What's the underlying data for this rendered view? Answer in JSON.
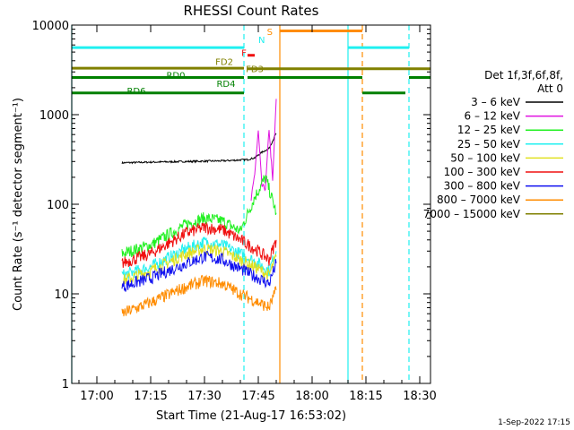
{
  "chart_data": {
    "type": "line",
    "title": "RHESSI Count Rates",
    "xlabel": "Start Time (21-Aug-17 16:53:02)",
    "ylabel": "Count Rate (s⁻¹ detector segment⁻¹)",
    "y_scale": "log",
    "xlim": [
      "16:53",
      "18:33"
    ],
    "ylim": [
      1,
      10000
    ],
    "x_ticks": [
      "17:00",
      "17:15",
      "17:30",
      "17:45",
      "18:00",
      "18:15",
      "18:30"
    ],
    "y_ticks": [
      "1",
      "10",
      "100",
      "1000",
      "10000"
    ],
    "grid": false,
    "legend": {
      "position": "right",
      "title": "Det 1f,3f,6f,8f,",
      "subtitle": "Att 0",
      "entries": [
        {
          "name": "3 – 6 keV",
          "color": "#000000"
        },
        {
          "name": "6 – 12 keV",
          "color": "#e010e0"
        },
        {
          "name": "12 – 25 keV",
          "color": "#20f020"
        },
        {
          "name": "25 – 50 keV",
          "color": "#20f0f0"
        },
        {
          "name": "50 – 100 keV",
          "color": "#e0e020"
        },
        {
          "name": "100 – 300 keV",
          "color": "#f01010"
        },
        {
          "name": "300 – 800 keV",
          "color": "#1010f0"
        },
        {
          "name": "800 – 7000 keV",
          "color": "#ff8c00"
        },
        {
          "name": "7000 – 15000 keV",
          "color": "#808000"
        }
      ]
    },
    "series": [
      {
        "name": "3 – 6 keV",
        "color": "#000000",
        "x": [
          "17:07",
          "17:15",
          "17:25",
          "17:35",
          "17:42",
          "17:44",
          "17:46",
          "17:48",
          "17:50"
        ],
        "values": [
          290,
          295,
          300,
          305,
          315,
          330,
          380,
          420,
          620
        ]
      },
      {
        "name": "6 – 12 keV",
        "color": "#e010e0",
        "x": [
          "17:43",
          "17:44",
          "17:45",
          "17:46",
          "17:47",
          "17:48",
          "17:49",
          "17:50"
        ],
        "values": [
          110,
          220,
          650,
          160,
          150,
          700,
          180,
          1500
        ]
      },
      {
        "name": "12 – 25 keV",
        "color": "#20f020",
        "x": [
          "17:07",
          "17:15",
          "17:25",
          "17:30",
          "17:35",
          "17:40",
          "17:44",
          "17:47",
          "17:50"
        ],
        "values": [
          28,
          35,
          60,
          70,
          65,
          50,
          120,
          200,
          80
        ]
      },
      {
        "name": "25 – 50 keV",
        "color": "#20f0f0",
        "x": [
          "17:07",
          "17:15",
          "17:25",
          "17:30",
          "17:35",
          "17:40",
          "17:45",
          "17:48",
          "17:50"
        ],
        "values": [
          16,
          20,
          32,
          38,
          35,
          28,
          22,
          18,
          30
        ]
      },
      {
        "name": "50 – 100 keV",
        "color": "#e0e020",
        "x": [
          "17:07",
          "17:15",
          "17:25",
          "17:30",
          "17:35",
          "17:40",
          "17:45",
          "17:48",
          "17:50"
        ],
        "values": [
          14,
          18,
          28,
          32,
          30,
          24,
          19,
          16,
          26
        ]
      },
      {
        "name": "100 – 300 keV",
        "color": "#f01010",
        "x": [
          "17:07",
          "17:15",
          "17:25",
          "17:30",
          "17:35",
          "17:40",
          "17:45",
          "17:48",
          "17:50"
        ],
        "values": [
          22,
          28,
          48,
          55,
          52,
          40,
          30,
          24,
          40
        ]
      },
      {
        "name": "300 – 800 keV",
        "color": "#1010f0",
        "x": [
          "17:07",
          "17:15",
          "17:25",
          "17:30",
          "17:35",
          "17:40",
          "17:45",
          "17:48",
          "17:50"
        ],
        "values": [
          12,
          15,
          22,
          26,
          24,
          19,
          15,
          13,
          22
        ]
      },
      {
        "name": "800 – 7000 keV",
        "color": "#ff8c00",
        "x": [
          "17:07",
          "17:15",
          "17:25",
          "17:30",
          "17:35",
          "17:40",
          "17:45",
          "17:48",
          "17:50"
        ],
        "values": [
          6,
          8,
          12,
          14,
          13,
          10,
          8,
          7,
          11
        ]
      }
    ],
    "flag_bars": [
      {
        "label": "N",
        "color": "#20f0f0",
        "segments": [
          [
            "16:53",
            "17:41"
          ],
          [
            "18:10",
            "18:27"
          ]
        ],
        "level": 5600
      },
      {
        "label": "S",
        "color": "#ff8c00",
        "segments": [
          [
            "17:51",
            "18:14"
          ]
        ],
        "level": 8600
      },
      {
        "label": "F",
        "color": "#f01010",
        "segments": [
          [
            "17:42",
            "17:44"
          ]
        ],
        "level": 4600
      },
      {
        "label": "FD2",
        "color": "#808000",
        "segments": [
          [
            "16:53",
            "17:41"
          ]
        ],
        "level": 3300
      },
      {
        "label": "FD3",
        "color": "#808000",
        "segments": [
          [
            "17:42",
            "18:33"
          ]
        ],
        "level": 3250
      },
      {
        "label": "RD0",
        "color": "#008000",
        "segments": [
          [
            "16:53",
            "17:41"
          ],
          [
            "17:42",
            "18:14"
          ],
          [
            "18:27",
            "18:33"
          ]
        ],
        "level": 2600
      },
      {
        "label": "RD4",
        "color": "#008000",
        "segments": [
          [
            "16:53",
            "17:41"
          ]
        ],
        "level": 1750
      },
      {
        "label": "RD6",
        "color": "#008000",
        "segments": [
          [
            "18:14",
            "18:26"
          ]
        ],
        "level": 1750
      }
    ],
    "vertical_markers": [
      {
        "x": "16:53",
        "color": "#20f0f0",
        "style": "solid"
      },
      {
        "x": "17:41",
        "color": "#20f0f0",
        "style": "dashed"
      },
      {
        "x": "17:51",
        "color": "#ff8c00",
        "style": "solid"
      },
      {
        "x": "18:10",
        "color": "#20f0f0",
        "style": "solid"
      },
      {
        "x": "18:14",
        "color": "#ff8c00",
        "style": "dashed"
      },
      {
        "x": "18:27",
        "color": "#20f0f0",
        "style": "dashed"
      }
    ]
  },
  "footer": {
    "timestamp": "1-Sep-2022 17:15"
  }
}
